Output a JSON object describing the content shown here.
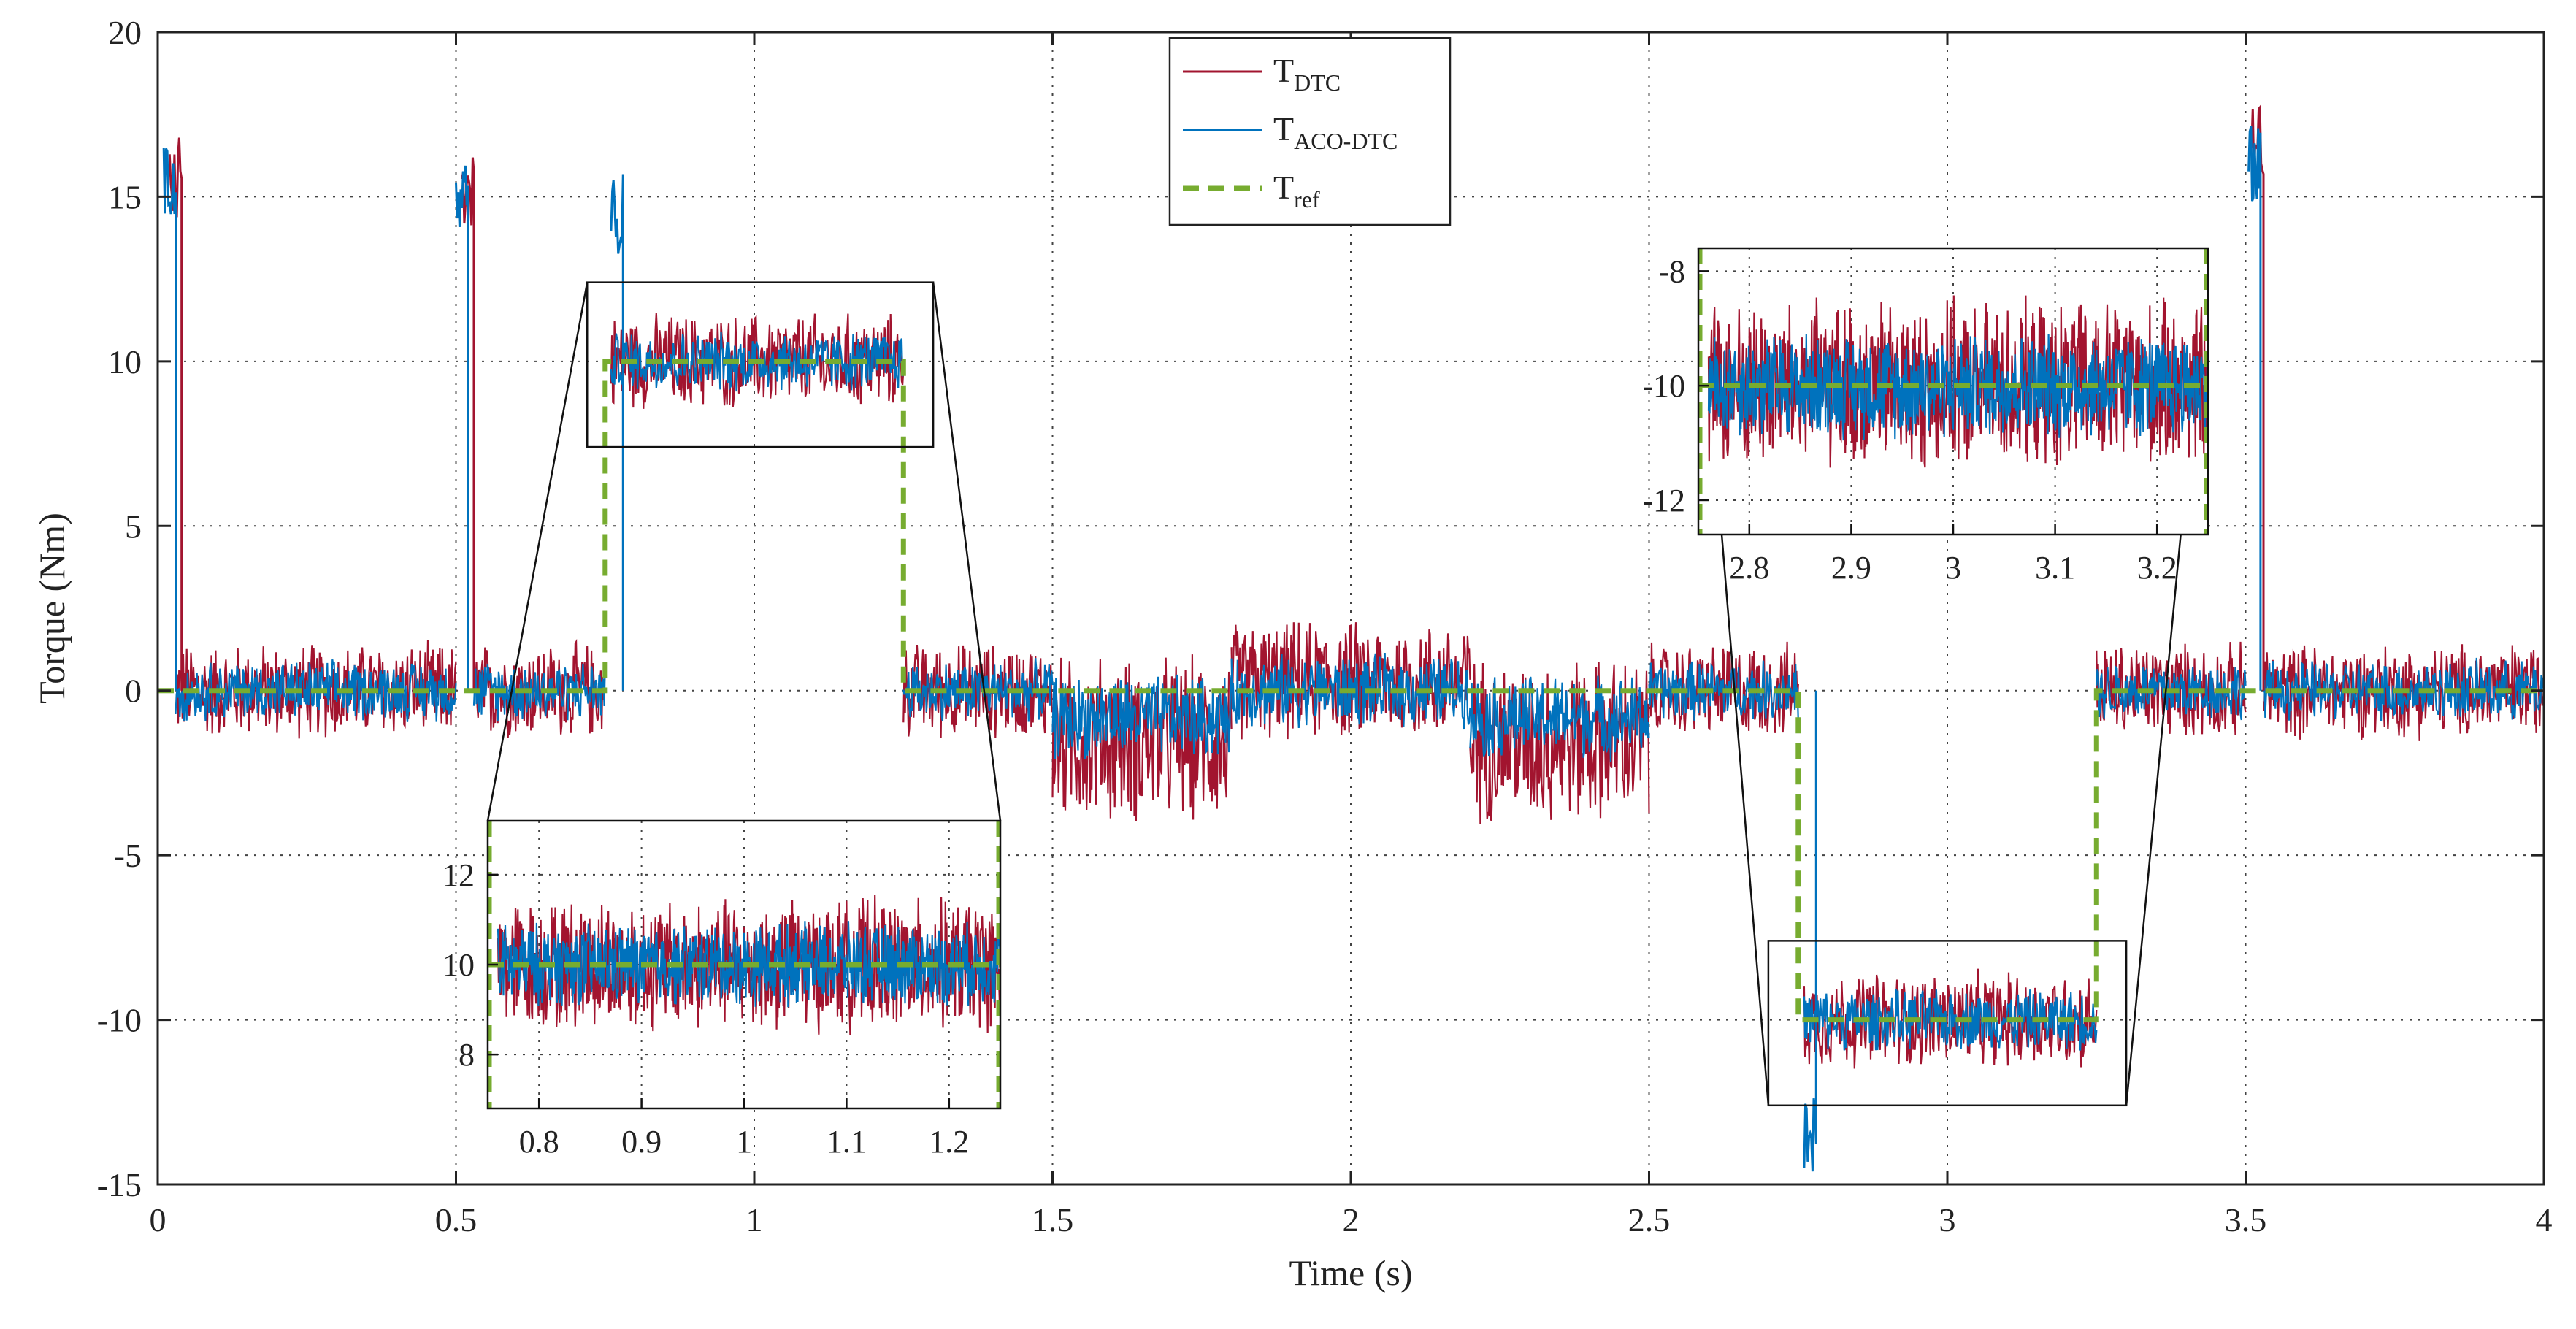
{
  "chart_data": {
    "type": "line",
    "title": "",
    "xlabel": "Time (s)",
    "ylabel": "Torque (Nm)",
    "xlim": [
      0,
      4
    ],
    "ylim": [
      -15,
      20
    ],
    "xticks": [
      0,
      0.5,
      1,
      1.5,
      2,
      2.5,
      3,
      3.5,
      4
    ],
    "xtick_labels": [
      "0",
      "0.5",
      "1",
      "1.5",
      "2",
      "2.5",
      "3",
      "3.5",
      "4"
    ],
    "yticks": [
      -15,
      -10,
      -5,
      0,
      5,
      10,
      15,
      20
    ],
    "ytick_labels": [
      "-15",
      "-10",
      "-5",
      "0",
      "5",
      "10",
      "15",
      "20"
    ],
    "grid": true,
    "legend_position": "top-center",
    "series": [
      {
        "name": "T_DTC",
        "label_main": "T",
        "label_sub": "DTC",
        "color": "#a2142f",
        "style": "solid",
        "segments": [
          {
            "t": [
              0.03,
              0.5
            ],
            "mean": 0,
            "band": 1.6
          },
          {
            "t": [
              0.53,
              0.75
            ],
            "mean": 0,
            "band": 1.6
          },
          {
            "t": [
              0.76,
              1.25
            ],
            "mean": 10,
            "band": 1.6
          },
          {
            "t": [
              1.25,
              1.5
            ],
            "mean": 0,
            "band": 1.6
          },
          {
            "t": [
              1.5,
              1.8
            ],
            "mean": -1.5,
            "band": 2.8
          },
          {
            "t": [
              1.8,
              2.2
            ],
            "mean": 0.3,
            "band": 2.0
          },
          {
            "t": [
              2.2,
              2.5
            ],
            "mean": -1.5,
            "band": 2.8
          },
          {
            "t": [
              2.5,
              2.75
            ],
            "mean": 0,
            "band": 1.6
          },
          {
            "t": [
              2.76,
              3.25
            ],
            "mean": -10,
            "band": 1.6
          },
          {
            "t": [
              3.25,
              3.5
            ],
            "mean": 0,
            "band": 1.6
          },
          {
            "t": [
              3.53,
              4.0
            ],
            "mean": 0,
            "band": 1.6
          }
        ],
        "peaks": [
          {
            "t": 0.02,
            "value": 16.8
          },
          {
            "t": 0.51,
            "value": 16.5
          },
          {
            "t": 3.51,
            "value": 17.8
          }
        ]
      },
      {
        "name": "T_ACO-DTC",
        "label_main": "T",
        "label_sub": "ACO-DTC",
        "color": "#0072bd",
        "style": "solid",
        "segments": [
          {
            "t": [
              0.03,
              0.5
            ],
            "mean": 0,
            "band": 1.0
          },
          {
            "t": [
              0.53,
              0.75
            ],
            "mean": 0,
            "band": 1.0
          },
          {
            "t": [
              0.76,
              1.25
            ],
            "mean": 10,
            "band": 1.0
          },
          {
            "t": [
              1.25,
              1.5
            ],
            "mean": 0,
            "band": 1.0
          },
          {
            "t": [
              1.5,
              1.8
            ],
            "mean": -0.8,
            "band": 1.4
          },
          {
            "t": [
              1.8,
              2.2
            ],
            "mean": 0,
            "band": 1.2
          },
          {
            "t": [
              2.2,
              2.5
            ],
            "mean": -0.8,
            "band": 1.4
          },
          {
            "t": [
              2.5,
              2.75
            ],
            "mean": 0,
            "band": 1.0
          },
          {
            "t": [
              2.76,
              3.25
            ],
            "mean": -10,
            "band": 1.0
          },
          {
            "t": [
              3.25,
              3.5
            ],
            "mean": 0,
            "band": 1.0
          },
          {
            "t": [
              3.53,
              4.0
            ],
            "mean": 0,
            "band": 1.0
          }
        ],
        "peaks": [
          {
            "t": 0.01,
            "value": 16.5
          },
          {
            "t": 0.5,
            "value": 16.2
          },
          {
            "t": 0.76,
            "value": 15.7
          },
          {
            "t": 2.76,
            "value": -14.8
          },
          {
            "t": 3.505,
            "value": 17.3
          }
        ]
      },
      {
        "name": "T_ref",
        "label_main": "T",
        "label_sub": "ref",
        "color": "#77ac30",
        "style": "dashed",
        "x": [
          0,
          0.75,
          0.75,
          1.25,
          1.25,
          2.75,
          2.75,
          3.25,
          3.25,
          4.0
        ],
        "y": [
          0,
          0,
          10,
          10,
          0,
          0,
          -10,
          -10,
          0,
          0
        ]
      }
    ],
    "insets": [
      {
        "name": "zoom-positive",
        "source_box": {
          "x": [
            0.72,
            1.3
          ],
          "y": [
            7.4,
            12.4
          ]
        },
        "xlim": [
          0.75,
          1.25
        ],
        "ylim": [
          6.8,
          13.2
        ],
        "xticks": [
          0.8,
          0.9,
          1,
          1.1,
          1.2
        ],
        "xtick_labels": [
          "0.8",
          "0.9",
          "1",
          "1.1",
          "1.2"
        ],
        "yticks": [
          8,
          10,
          12
        ],
        "ytick_labels": [
          "8",
          "10",
          "12"
        ],
        "ref_value": 10
      },
      {
        "name": "zoom-negative",
        "source_box": {
          "x": [
            2.7,
            3.3
          ],
          "y": [
            -12.6,
            -7.6
          ]
        },
        "xlim": [
          2.75,
          3.25
        ],
        "ylim": [
          -12.6,
          -7.6
        ],
        "xticks": [
          2.8,
          2.9,
          3,
          3.1,
          3.2
        ],
        "xtick_labels": [
          "2.8",
          "2.9",
          "3",
          "3.1",
          "3.2"
        ],
        "yticks": [
          -8,
          -10,
          -12
        ],
        "ytick_labels": [
          "-8",
          "-10",
          "-12"
        ],
        "ref_value": -10
      }
    ]
  }
}
